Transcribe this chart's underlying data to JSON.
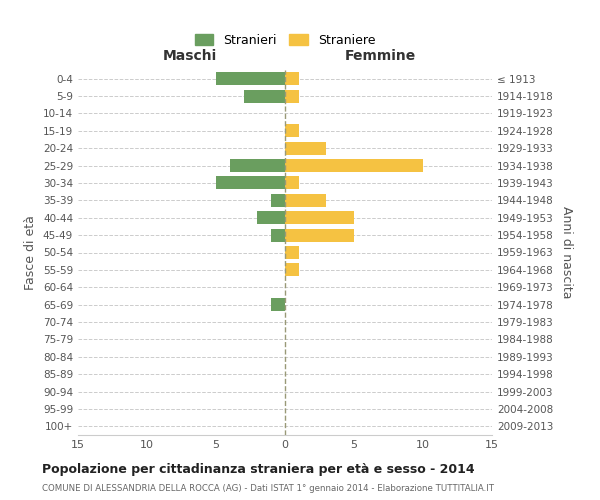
{
  "age_groups": [
    "0-4",
    "5-9",
    "10-14",
    "15-19",
    "20-24",
    "25-29",
    "30-34",
    "35-39",
    "40-44",
    "45-49",
    "50-54",
    "55-59",
    "60-64",
    "65-69",
    "70-74",
    "75-79",
    "80-84",
    "85-89",
    "90-94",
    "95-99",
    "100+"
  ],
  "birth_years": [
    "2009-2013",
    "2004-2008",
    "1999-2003",
    "1994-1998",
    "1989-1993",
    "1984-1988",
    "1979-1983",
    "1974-1978",
    "1969-1973",
    "1964-1968",
    "1959-1963",
    "1954-1958",
    "1949-1953",
    "1944-1948",
    "1939-1943",
    "1934-1938",
    "1929-1933",
    "1924-1928",
    "1919-1923",
    "1914-1918",
    "≤ 1913"
  ],
  "stranieri": [
    5,
    3,
    0,
    0,
    0,
    4,
    5,
    1,
    2,
    1,
    0,
    0,
    0,
    1,
    0,
    0,
    0,
    0,
    0,
    0,
    0
  ],
  "straniere": [
    1,
    1,
    0,
    1,
    3,
    10,
    1,
    3,
    5,
    5,
    1,
    1,
    0,
    0,
    0,
    0,
    0,
    0,
    0,
    0,
    0
  ],
  "color_stranieri": "#6a9e5f",
  "color_straniere": "#f5c242",
  "xlim": 15,
  "title": "Popolazione per cittadinanza straniera per età e sesso - 2014",
  "subtitle": "COMUNE DI ALESSANDRIA DELLA ROCCA (AG) - Dati ISTAT 1° gennaio 2014 - Elaborazione TUTTITALIA.IT",
  "ylabel_left": "Fasce di età",
  "ylabel_right": "Anni di nascita",
  "xlabel_left": "Maschi",
  "xlabel_right": "Femmine",
  "legend_stranieri": "Stranieri",
  "legend_straniere": "Straniere",
  "bg_color": "#ffffff",
  "grid_color": "#cccccc",
  "bar_height": 0.75
}
